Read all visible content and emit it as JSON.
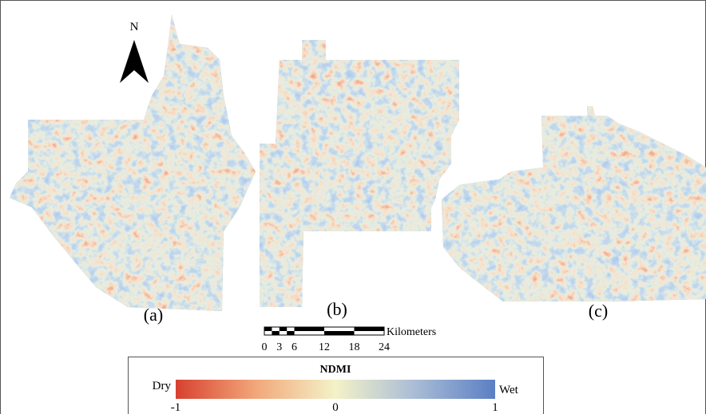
{
  "north_arrow": {
    "label": "N"
  },
  "panels": [
    {
      "label": "(a)"
    },
    {
      "label": "(b)"
    },
    {
      "label": "(c)"
    }
  ],
  "scale_bar": {
    "ticks": [
      0,
      3,
      6,
      12,
      18,
      24
    ],
    "unit": "Kilometers"
  },
  "legend": {
    "title": "NDMI",
    "low_label": "Dry",
    "high_label": "Wet",
    "ticks": [
      -1,
      0,
      1
    ]
  }
}
